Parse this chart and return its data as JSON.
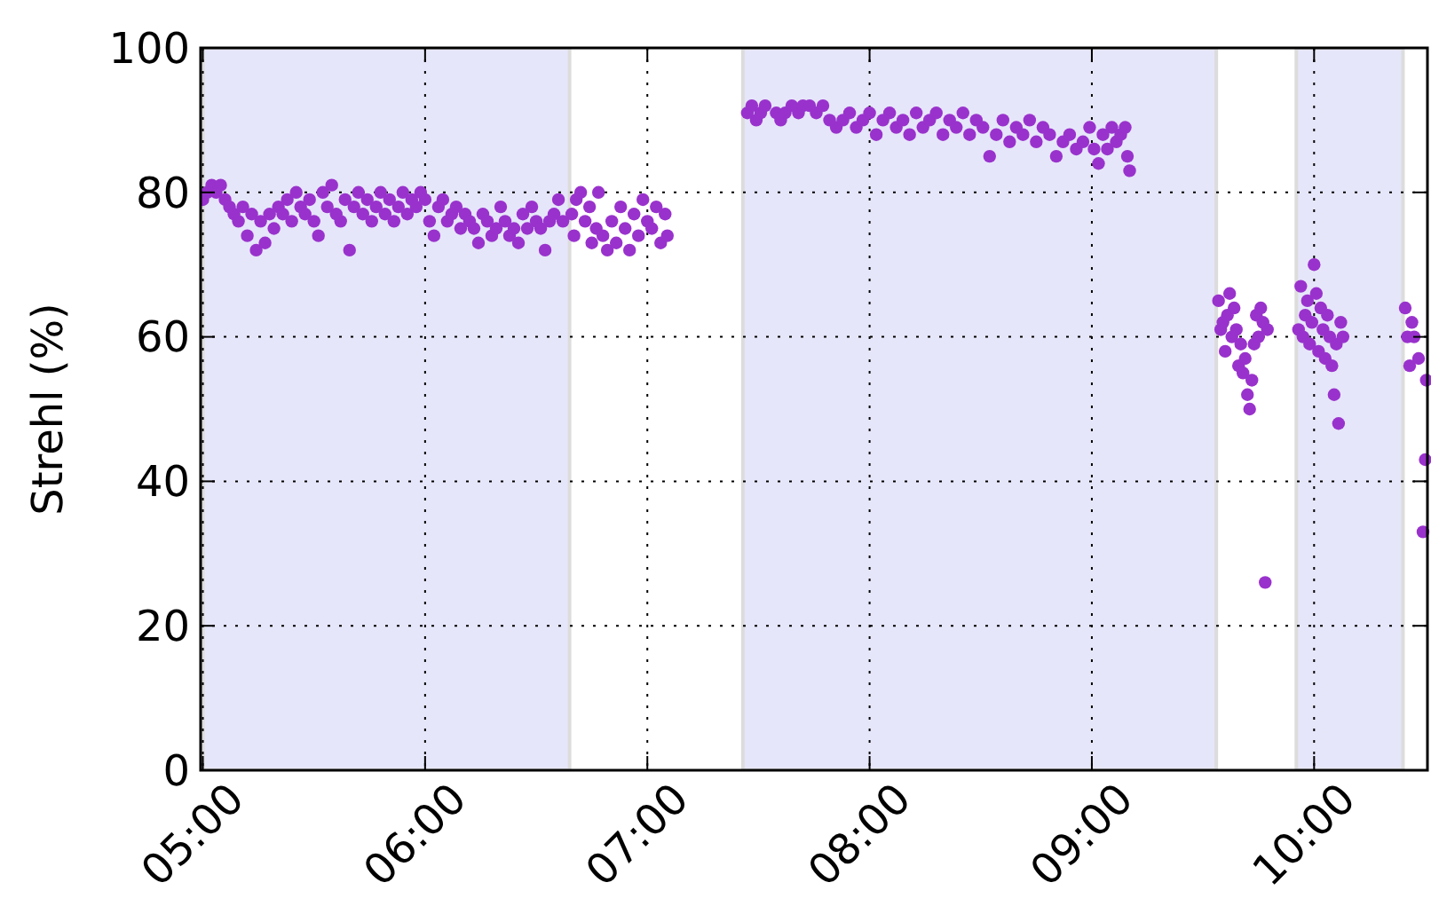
{
  "chart_data": {
    "type": "scatter",
    "ylabel": "Strehl (%)",
    "xlim": [
      4.99,
      10.51
    ],
    "ylim": [
      0,
      100
    ],
    "xticks": [
      {
        "value": 5,
        "label": "05:00"
      },
      {
        "value": 6,
        "label": "06:00"
      },
      {
        "value": 7,
        "label": "07:00"
      },
      {
        "value": 8,
        "label": "08:00"
      },
      {
        "value": 9,
        "label": "09:00"
      },
      {
        "value": 10,
        "label": "10:00"
      }
    ],
    "yticks": [
      0,
      20,
      40,
      60,
      80,
      100
    ],
    "grid": true,
    "marker": "circle",
    "bands": [
      {
        "axis": "x",
        "from": 5.0,
        "to": 6.65,
        "color": "#e6e6fa"
      },
      {
        "axis": "x",
        "from": 7.43,
        "to": 9.56,
        "color": "#e6e6fa"
      },
      {
        "axis": "x",
        "from": 9.92,
        "to": 10.4,
        "color": "#e6e6fa"
      }
    ],
    "series": [
      {
        "color": "#9932cc",
        "x": [
          5.0,
          5.02,
          5.04,
          5.06,
          5.08,
          5.1,
          5.12,
          5.14,
          5.16,
          5.18,
          5.2,
          5.22,
          5.24,
          5.26,
          5.28,
          5.3,
          5.32,
          5.34,
          5.36,
          5.38,
          5.4,
          5.42,
          5.44,
          5.46,
          5.48,
          5.5,
          5.52,
          5.54,
          5.56,
          5.58,
          5.6,
          5.62,
          5.64,
          5.66,
          5.68,
          5.7,
          5.72,
          5.74,
          5.76,
          5.78,
          5.8,
          5.82,
          5.84,
          5.86,
          5.88,
          5.9,
          5.92,
          5.94,
          5.96,
          5.98,
          6.0,
          6.02,
          6.04,
          6.06,
          6.08,
          6.1,
          6.12,
          6.14,
          6.16,
          6.18,
          6.2,
          6.22,
          6.24,
          6.26,
          6.28,
          6.3,
          6.32,
          6.34,
          6.36,
          6.38,
          6.4,
          6.42,
          6.44,
          6.46,
          6.48,
          6.5,
          6.52,
          6.54,
          6.56,
          6.58,
          6.6,
          6.62,
          6.66,
          6.67,
          6.68,
          6.7,
          6.72,
          6.74,
          6.75,
          6.77,
          6.78,
          6.8,
          6.82,
          6.84,
          6.86,
          6.88,
          6.9,
          6.92,
          6.94,
          6.96,
          6.98,
          7.0,
          7.02,
          7.04,
          7.06,
          7.08,
          7.09,
          7.45,
          7.47,
          7.49,
          7.51,
          7.53,
          7.58,
          7.6,
          7.62,
          7.65,
          7.68,
          7.7,
          7.73,
          7.76,
          7.79,
          7.82,
          7.85,
          7.88,
          7.91,
          7.94,
          7.97,
          8.0,
          8.03,
          8.06,
          8.09,
          8.12,
          8.15,
          8.18,
          8.21,
          8.24,
          8.27,
          8.3,
          8.33,
          8.36,
          8.39,
          8.42,
          8.45,
          8.48,
          8.51,
          8.54,
          8.57,
          8.6,
          8.63,
          8.66,
          8.69,
          8.72,
          8.75,
          8.78,
          8.81,
          8.84,
          8.87,
          8.9,
          8.93,
          8.96,
          8.99,
          9.01,
          9.03,
          9.05,
          9.07,
          9.09,
          9.11,
          9.13,
          9.15,
          9.16,
          9.17,
          9.57,
          9.58,
          9.59,
          9.6,
          9.61,
          9.62,
          9.63,
          9.64,
          9.65,
          9.66,
          9.67,
          9.68,
          9.69,
          9.7,
          9.71,
          9.72,
          9.73,
          9.74,
          9.75,
          9.76,
          9.77,
          9.78,
          9.79,
          9.93,
          9.94,
          9.95,
          9.96,
          9.97,
          9.98,
          9.99,
          10.0,
          10.01,
          10.02,
          10.03,
          10.04,
          10.05,
          10.06,
          10.07,
          10.08,
          10.09,
          10.1,
          10.11,
          10.12,
          10.13,
          10.41,
          10.42,
          10.43,
          10.44,
          10.45,
          10.47,
          10.49,
          10.5,
          10.505
        ],
        "values": [
          79,
          80,
          81,
          80,
          81,
          79,
          78,
          77,
          76,
          78,
          74,
          77,
          72,
          76,
          73,
          77,
          75,
          78,
          77,
          79,
          76,
          80,
          78,
          77,
          79,
          76,
          74,
          80,
          78,
          81,
          77,
          76,
          79,
          72,
          78,
          80,
          77,
          79,
          76,
          78,
          80,
          77,
          79,
          76,
          78,
          80,
          77,
          79,
          78,
          80,
          79,
          76,
          74,
          78,
          79,
          76,
          77,
          78,
          75,
          77,
          76,
          75,
          73,
          77,
          76,
          74,
          75,
          78,
          76,
          74,
          75,
          73,
          77,
          75,
          78,
          76,
          75,
          72,
          76,
          77,
          79,
          76,
          77,
          74,
          79,
          80,
          76,
          78,
          73,
          75,
          80,
          74,
          72,
          76,
          73,
          78,
          75,
          72,
          77,
          74,
          79,
          76,
          75,
          78,
          73,
          77,
          74,
          91,
          92,
          90,
          91,
          92,
          91,
          90,
          91,
          92,
          91,
          92,
          92,
          91,
          92,
          90,
          89,
          90,
          91,
          89,
          90,
          91,
          88,
          90,
          91,
          89,
          90,
          88,
          91,
          89,
          90,
          91,
          88,
          90,
          89,
          91,
          88,
          90,
          89,
          85,
          88,
          90,
          87,
          89,
          88,
          90,
          87,
          89,
          88,
          85,
          87,
          88,
          86,
          87,
          89,
          86,
          84,
          88,
          86,
          89,
          87,
          88,
          89,
          85,
          83,
          65,
          61,
          62,
          58,
          63,
          66,
          60,
          64,
          61,
          56,
          59,
          55,
          57,
          52,
          50,
          54,
          59,
          63,
          60,
          64,
          62,
          26,
          61,
          61,
          67,
          60,
          63,
          65,
          59,
          62,
          70,
          66,
          58,
          64,
          61,
          57,
          63,
          60,
          56,
          52,
          59,
          48,
          62,
          60,
          64,
          60,
          56,
          62,
          60,
          57,
          33,
          43,
          54
        ]
      }
    ]
  }
}
